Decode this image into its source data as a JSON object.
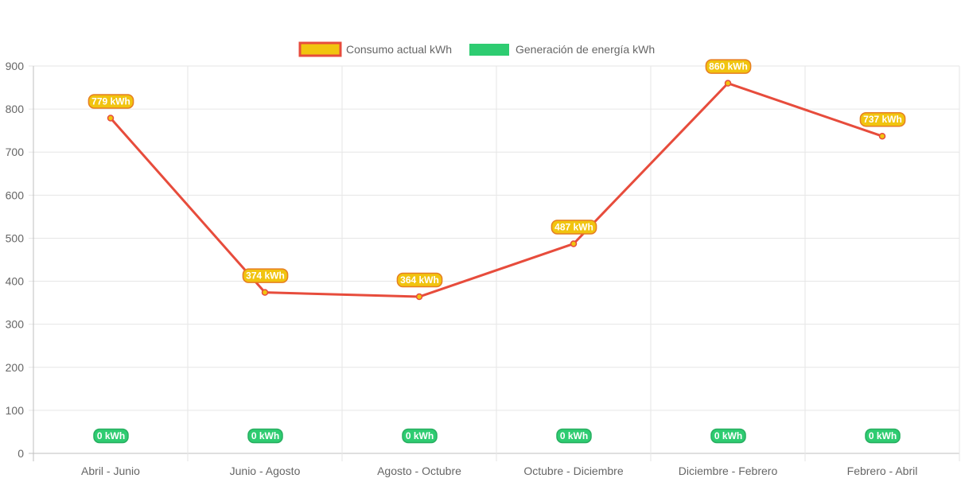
{
  "chart_data": {
    "type": "line",
    "categories": [
      "Abril - Junio",
      "Junio - Agosto",
      "Agosto - Octubre",
      "Octubre - Diciembre",
      "Diciembre - Febrero",
      "Febrero - Abril"
    ],
    "series": [
      {
        "name": "Consumo actual kWh",
        "values": [
          779,
          374,
          364,
          487,
          860,
          737
        ],
        "labels": [
          "779 kWh",
          "374 kWh",
          "364 kWh",
          "487 kWh",
          "860 kWh",
          "737 kWh"
        ],
        "line_color": "#e74c3c",
        "fill_color": "#f1c40f"
      },
      {
        "name": "Generación de energía kWh",
        "values": [
          0,
          0,
          0,
          0,
          0,
          0
        ],
        "labels": [
          "0 kWh",
          "0 kWh",
          "0 kWh",
          "0 kWh",
          "0 kWh",
          "0 kWh"
        ],
        "line_color": "#2ecc71",
        "fill_color": "#2ecc71"
      }
    ],
    "title": "",
    "xlabel": "",
    "ylabel": "",
    "ylim": [
      0,
      900
    ],
    "yticks": [
      "0",
      "100",
      "200",
      "300",
      "400",
      "500",
      "600",
      "700",
      "800",
      "900"
    ],
    "grid": true,
    "legend_position": "top"
  }
}
